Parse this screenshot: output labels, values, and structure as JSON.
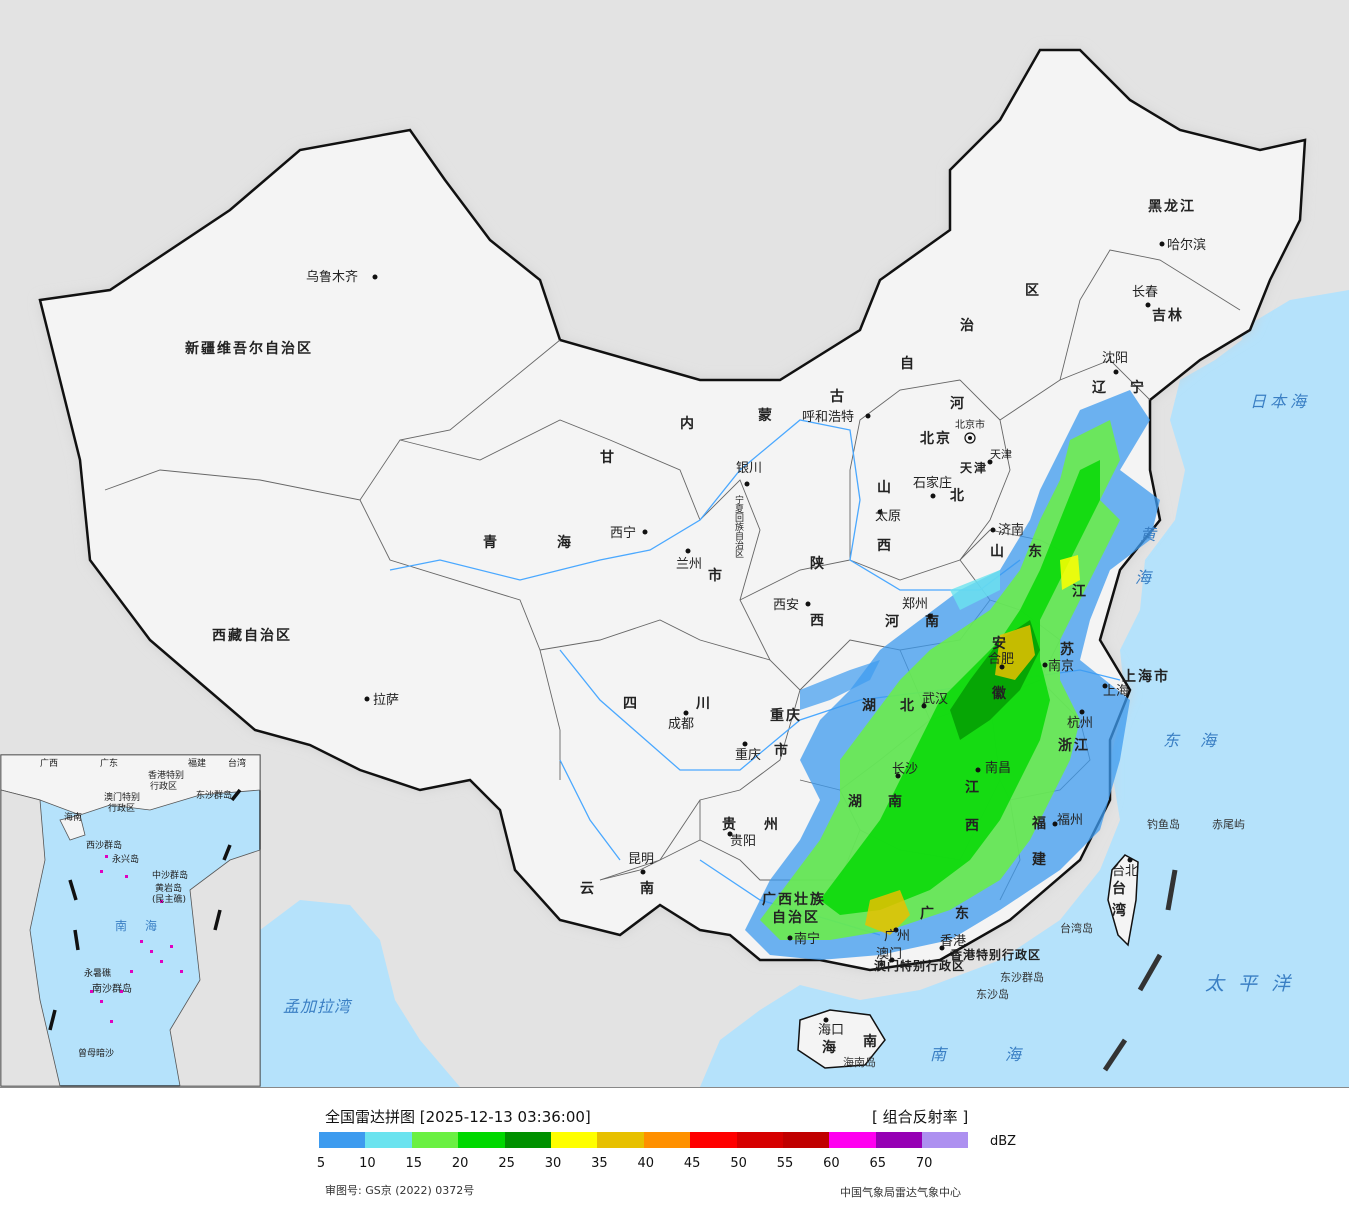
{
  "map": {
    "provinces": {
      "xinjiang": "新疆维吾尔自治区",
      "xizang": "西藏自治区",
      "qinghai_1": "青",
      "qinghai_2": "海",
      "gansu": "甘",
      "sichuan_1": "四",
      "sichuan_2": "川",
      "yunnan_1": "云",
      "yunnan_2": "南",
      "guizhou_1": "贵",
      "guizhou_2": "州",
      "chongqing_1": "重庆",
      "chongqing_2": "市",
      "shaanxi_1": "陕",
      "shaanxi_2": "西",
      "ningxia": "宁夏回族自治区",
      "neimenggu_1": "内",
      "neimenggu_2": "蒙",
      "neimenggu_3": "古",
      "neimenggu_4": "自",
      "neimenggu_5": "治",
      "neimenggu_6": "区",
      "heilongjiang": "黑龙江",
      "jilin": "吉林",
      "liaoning_1": "辽",
      "liaoning_2": "宁",
      "hebei_1": "河",
      "hebei_2": "北",
      "shanxi_1": "山",
      "shanxi_2": "西",
      "shandong_1": "山",
      "shandong_2": "东",
      "henan_1": "河",
      "henan_2": "南",
      "hubei_1": "湖",
      "hubei_2": "北",
      "hunan_1": "湖",
      "hunan_2": "南",
      "jiangxi_1": "江",
      "jiangxi_2": "西",
      "anhui_1": "安",
      "anhui_2": "徽",
      "jiangsu_1": "江",
      "jiangsu_2": "苏",
      "zhejiang": "浙江",
      "fujian_1": "福",
      "fujian_2": "建",
      "guangdong_1": "广",
      "guangdong_2": "东",
      "guangxi_1": "广西壮族",
      "guangxi_2": "自治区",
      "hainan_1": "海",
      "hainan_2": "南",
      "taiwan_1": "台",
      "taiwan_2": "湾",
      "shanghai": "上海市",
      "beijing": "北京",
      "tianjin": "天津",
      "hongkong_sar": "香港特别行政区",
      "macao_sar": "澳门特别行政区",
      "gansu_lanzhou_shi": "市"
    },
    "cities": {
      "urumqi": "乌鲁木齐",
      "lhasa": "拉萨",
      "xining": "西宁",
      "lanzhou": "兰州",
      "yinchuan": "银川",
      "hohhot": "呼和浩特",
      "beijing_city": "北京市",
      "tianjin_city": "天津",
      "shijiazhuang": "石家庄",
      "taiyuan": "太原",
      "jinan": "济南",
      "zhengzhou": "郑州",
      "xian": "西安",
      "chengdu": "成都",
      "chongqing": "重庆",
      "guiyang": "贵阳",
      "kunming": "昆明",
      "nanning": "南宁",
      "changsha": "长沙",
      "wuhan": "武汉",
      "hefei": "合肥",
      "nanjing": "南京",
      "shanghai_city": "上海",
      "hangzhou": "杭州",
      "nanchang": "南昌",
      "fuzhou": "福州",
      "taipei": "台北",
      "guangzhou": "广州",
      "hongkong": "香港",
      "macao": "澳门",
      "haikou": "海口",
      "shenyang": "沈阳",
      "changchun": "长春",
      "harbin": "哈尔滨"
    },
    "seas": {
      "japan_sea": "日本海",
      "yellow_sea_1": "黄",
      "yellow_sea_2": "海",
      "east_sea_1": "东",
      "east_sea_2": "海",
      "pacific": "太 平 洋",
      "south_sea_1": "南",
      "south_sea_2": "海",
      "bengal": "孟加拉湾"
    },
    "islands": {
      "diaoyu": "钓鱼岛",
      "chiwei": "赤尾屿",
      "taiwan_island": "台湾岛",
      "dongsha_islands": "东沙群岛",
      "dongsha_island": "东沙岛",
      "hainan_island": "海南岛"
    },
    "inset": {
      "guangdong": "广东",
      "guangxi": "广西",
      "fujian": "福建",
      "taiwan": "台湾",
      "hk_sar": "香港特别",
      "hk_sar_2": "行政区",
      "mo_sar": "澳门特别",
      "mo_sar_2": "行政区",
      "dongsha": "东沙群岛",
      "hainan": "海南",
      "xisha": "西沙群岛",
      "zhongsha": "中沙群岛",
      "huangyan": "黄岩岛",
      "huangyan_2": "(民主礁)",
      "nanhai_1": "南",
      "nanhai_2": "海",
      "nansha": "南沙群岛",
      "yongshu": "永暑礁",
      "zengmu": "曾母暗沙",
      "yongxing": "永兴岛"
    },
    "colors": {
      "sea": "#b5e2fb",
      "land_china": "#f4f4f4",
      "land_outside": "#e3e3e3",
      "border": "#111111",
      "river": "#4aa8ff"
    }
  },
  "legend": {
    "title": "全国雷达拼图 [2025-12-13 03:36:00]",
    "product": "[ 组合反射率 ]",
    "unit": "dBZ",
    "colors": [
      "#3d9bef",
      "#6be3ef",
      "#6bf043",
      "#00d800",
      "#009000",
      "#ffff00",
      "#e7c000",
      "#ff9000",
      "#ff0000",
      "#d60000",
      "#c00000",
      "#ff00f0",
      "#9600b4",
      "#ad90f0"
    ],
    "ticks": [
      "5",
      "10",
      "15",
      "20",
      "25",
      "30",
      "35",
      "40",
      "45",
      "50",
      "55",
      "60",
      "65",
      "70"
    ],
    "review_no": "审图号: GS京 (2022) 0372号",
    "credit": "中国气象局雷达气象中心"
  }
}
